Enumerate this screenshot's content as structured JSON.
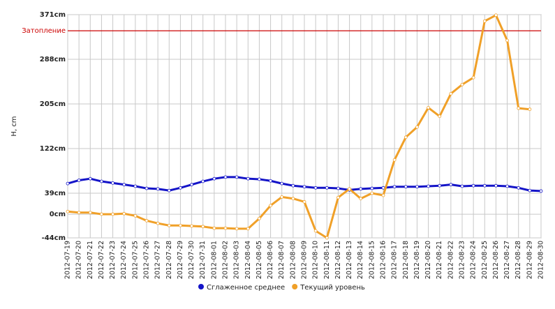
{
  "chart_data": {
    "type": "line",
    "y_label": "H, cm",
    "categories": [
      "2012-07-19",
      "2012-07-20",
      "2012-07-21",
      "2012-07-22",
      "2012-07-23",
      "2012-07-24",
      "2012-07-25",
      "2012-07-26",
      "2012-07-27",
      "2012-07-28",
      "2012-07-29",
      "2012-07-30",
      "2012-07-31",
      "2012-08-01",
      "2012-08-02",
      "2012-08-03",
      "2012-08-04",
      "2012-08-05",
      "2012-08-06",
      "2012-08-07",
      "2012-08-08",
      "2012-08-09",
      "2012-08-10",
      "2012-08-11",
      "2012-08-12",
      "2012-08-13",
      "2012-08-14",
      "2012-08-15",
      "2012-08-16",
      "2012-08-17",
      "2012-08-18",
      "2012-08-19",
      "2012-08-20",
      "2012-08-21",
      "2012-08-22",
      "2012-08-23",
      "2012-08-24",
      "2012-08-25",
      "2012-08-26",
      "2012-08-27",
      "2012-08-28",
      "2012-08-29",
      "2012-08-30"
    ],
    "series": [
      {
        "name": "Сглаженное среднее",
        "color": "#1414c8",
        "values": [
          57,
          63,
          66,
          61,
          58,
          55,
          52,
          48,
          47,
          44,
          49,
          55,
          61,
          66,
          69,
          69,
          66,
          65,
          62,
          57,
          53,
          51,
          49,
          49,
          48,
          45,
          47,
          48,
          49,
          51,
          51,
          51,
          52,
          53,
          55,
          52,
          53,
          53,
          53,
          52,
          49,
          44,
          43
        ]
      },
      {
        "name": "Текущий уровень",
        "color": "#f0a028",
        "values": [
          5,
          3,
          3,
          0,
          0,
          1,
          -3,
          -12,
          -17,
          -21,
          -21,
          -22,
          -23,
          -26,
          -26,
          -27,
          -27,
          -8,
          16,
          32,
          29,
          23,
          -31,
          -44,
          31,
          47,
          29,
          39,
          35,
          101,
          143,
          162,
          198,
          182,
          224,
          241,
          254,
          359,
          370,
          323,
          197,
          195,
          null
        ]
      }
    ],
    "threshold": {
      "label": "Затопление",
      "value": 341,
      "color": "#cc0000"
    },
    "ylim": [
      -44,
      371
    ],
    "yticks": [
      {
        "value": -44,
        "label": "-44cm"
      },
      {
        "value": 0,
        "label": "0cm"
      },
      {
        "value": 39,
        "label": "39cm"
      },
      {
        "value": 122,
        "label": "122cm"
      },
      {
        "value": 205,
        "label": "205cm"
      },
      {
        "value": 288,
        "label": "288cm"
      },
      {
        "value": 371,
        "label": "371cm"
      }
    ],
    "grid": true
  }
}
